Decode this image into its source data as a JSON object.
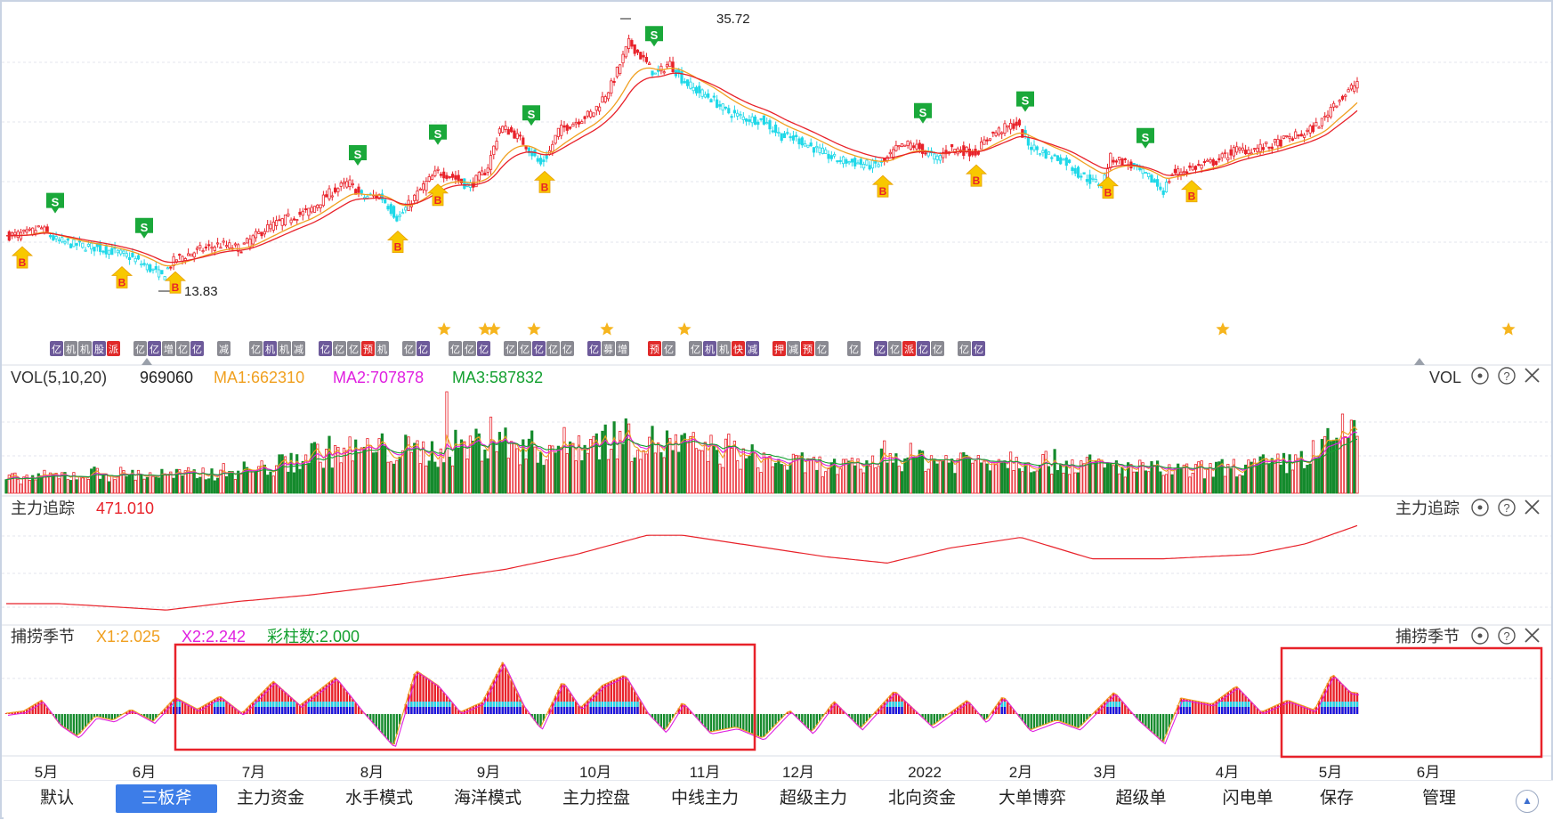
{
  "price_panel": {
    "high_label": "35.72",
    "low_label": "13.83"
  },
  "vol_panel": {
    "name": "VOL(5,10,20)",
    "value": "969060",
    "ma1": "MA1:662310",
    "ma2": "MA2:707878",
    "ma3": "MA3:587832",
    "right_name": "VOL"
  },
  "track_panel": {
    "name": "主力追踪",
    "value": "471.010",
    "right_name": "主力追踪"
  },
  "season_panel": {
    "name": "捕捞季节",
    "x1": "X1:2.025",
    "x2": "X2:2.242",
    "bars": "彩柱数:2.000",
    "right_name": "捕捞季节"
  },
  "x_axis": [
    "5月",
    "6月",
    "7月",
    "8月",
    "9月",
    "10月",
    "11月",
    "12月",
    "2022",
    "2月",
    "3月",
    "4月",
    "5月",
    "6月"
  ],
  "tabs": [
    "默认",
    "三板斧",
    "主力资金",
    "水手模式",
    "海洋模式",
    "主力控盘",
    "中线主力",
    "超级主力",
    "北向资金",
    "大单博弈",
    "超级单",
    "闪电单",
    "保存",
    "管理"
  ],
  "active_tab": "三板斧",
  "signals": {
    "buy": "B",
    "sell": "S",
    "event_tags": [
      "亿",
      "机",
      "机",
      "股",
      "派",
      "亿",
      "亿",
      "增",
      "亿",
      "亿",
      "减",
      "亿",
      "机",
      "机",
      "减",
      "亿",
      "亿",
      "亿",
      "预",
      "机",
      "亿",
      "亿",
      "亿",
      "亿",
      "亿",
      "亿",
      "亿",
      "亿",
      "亿",
      "亿",
      "亿",
      "募",
      "增",
      "预",
      "亿",
      "亿",
      "机",
      "机",
      "快",
      "减",
      "押",
      "减",
      "预",
      "亿",
      "亿",
      "亿",
      "亿",
      "派",
      "亿",
      "亿",
      "亿",
      "亿"
    ]
  },
  "colors": {
    "up": "#e8222a",
    "down_cyan": "#1fd8e8",
    "down_green": "#148a2c",
    "ma_red": "#e8222a",
    "ma_orange": "#f0a020",
    "ma_magenta": "#e020e0",
    "ma_green": "#14a030",
    "buy_arrow": "#f8c800",
    "sell_flag": "#1aa83a",
    "highlight_box": "#e8222a",
    "active_tab": "#3d7de8"
  },
  "chart_data": [
    {
      "type": "candlestick",
      "title": "",
      "x_labels": [
        "5月",
        "6月",
        "7月",
        "8月",
        "9月",
        "10月",
        "11月",
        "12月",
        "2022",
        "2月",
        "3月",
        "4月",
        "5月",
        "6月"
      ],
      "annotations": {
        "high": 35.72,
        "low": 13.83
      },
      "ylim": [
        12,
        38
      ],
      "close_path": [
        [
          0,
          17.6
        ],
        [
          25,
          17.8
        ],
        [
          38,
          18.4
        ],
        [
          55,
          17.2
        ],
        [
          75,
          16.8
        ],
        [
          100,
          16.5
        ],
        [
          118,
          16.2
        ],
        [
          140,
          15.6
        ],
        [
          160,
          14.6
        ],
        [
          175,
          13.83
        ],
        [
          190,
          15.4
        ],
        [
          215,
          16.2
        ],
        [
          240,
          16.8
        ],
        [
          262,
          16.4
        ],
        [
          290,
          18.2
        ],
        [
          315,
          19.2
        ],
        [
          340,
          19.9
        ],
        [
          365,
          21.7
        ],
        [
          385,
          22.6
        ],
        [
          400,
          21.2
        ],
        [
          420,
          21.4
        ],
        [
          440,
          19.2
        ],
        [
          455,
          20.8
        ],
        [
          470,
          22.4
        ],
        [
          485,
          23.6
        ],
        [
          500,
          23.2
        ],
        [
          520,
          22.2
        ],
        [
          540,
          23.8
        ],
        [
          555,
          27.8
        ],
        [
          570,
          27.2
        ],
        [
          585,
          26.0
        ],
        [
          600,
          24.2
        ],
        [
          610,
          25.4
        ],
        [
          620,
          27.4
        ],
        [
          640,
          28.3
        ],
        [
          660,
          29.2
        ],
        [
          680,
          31.7
        ],
        [
          700,
          35.72
        ],
        [
          715,
          34.2
        ],
        [
          730,
          32.6
        ],
        [
          745,
          33.8
        ],
        [
          760,
          32.2
        ],
        [
          775,
          31.2
        ],
        [
          790,
          30.6
        ],
        [
          810,
          29.2
        ],
        [
          830,
          28.6
        ],
        [
          850,
          28.4
        ],
        [
          870,
          27.0
        ],
        [
          890,
          26.6
        ],
        [
          910,
          25.7
        ],
        [
          930,
          24.8
        ],
        [
          950,
          24.5
        ],
        [
          970,
          24.2
        ],
        [
          985,
          24.4
        ],
        [
          1000,
          25.7
        ],
        [
          1015,
          26.2
        ],
        [
          1030,
          25.6
        ],
        [
          1045,
          24.8
        ],
        [
          1060,
          25.8
        ],
        [
          1080,
          25.5
        ],
        [
          1090,
          25.4
        ],
        [
          1105,
          27.0
        ],
        [
          1120,
          27.6
        ],
        [
          1135,
          28.1
        ],
        [
          1150,
          26.0
        ],
        [
          1170,
          25.2
        ],
        [
          1190,
          24.6
        ],
        [
          1205,
          23.4
        ],
        [
          1220,
          22.7
        ],
        [
          1232,
          22.4
        ],
        [
          1240,
          24.9
        ],
        [
          1255,
          24.6
        ],
        [
          1270,
          23.8
        ],
        [
          1285,
          23.0
        ],
        [
          1300,
          21.8
        ],
        [
          1310,
          23.4
        ],
        [
          1325,
          23.8
        ],
        [
          1340,
          24.1
        ],
        [
          1360,
          24.6
        ],
        [
          1380,
          25.6
        ],
        [
          1400,
          25.7
        ],
        [
          1420,
          26.0
        ],
        [
          1440,
          26.7
        ],
        [
          1460,
          27.2
        ],
        [
          1480,
          28.4
        ],
        [
          1490,
          29.9
        ],
        [
          1505,
          30.8
        ],
        [
          1520,
          32.2
        ],
        [
          1528,
          31.4
        ]
      ],
      "signals": {
        "buy_points": [
          18,
          130,
          190,
          440,
          485,
          605,
          985,
          1090,
          1238,
          1332
        ],
        "sell_points": [
          55,
          155,
          395,
          485,
          590,
          728,
          1030,
          1145,
          1280
        ]
      }
    },
    {
      "type": "bar",
      "name": "VOL(5,10,20)",
      "ylim": [
        0,
        1200000
      ],
      "last_value": 969060,
      "ma": {
        "MA1": 662310,
        "MA2": 707878,
        "MA3": 587832
      },
      "envelope": [
        [
          0,
          180000
        ],
        [
          100,
          250000
        ],
        [
          200,
          230000
        ],
        [
          300,
          330000
        ],
        [
          350,
          520000
        ],
        [
          420,
          560000
        ],
        [
          480,
          520000
        ],
        [
          540,
          660000
        ],
        [
          600,
          560000
        ],
        [
          680,
          700000
        ],
        [
          740,
          620000
        ],
        [
          800,
          540000
        ],
        [
          860,
          400000
        ],
        [
          950,
          320000
        ],
        [
          1000,
          470000
        ],
        [
          1060,
          420000
        ],
        [
          1120,
          450000
        ],
        [
          1200,
          380000
        ],
        [
          1260,
          320000
        ],
        [
          1320,
          280000
        ],
        [
          1380,
          330000
        ],
        [
          1440,
          380000
        ],
        [
          1480,
          560000
        ],
        [
          1528,
          969060
        ]
      ],
      "spikes": [
        [
          495,
          1200000
        ],
        [
          545,
          900000
        ],
        [
          700,
          820000
        ],
        [
          812,
          700000
        ],
        [
          988,
          620000
        ]
      ]
    },
    {
      "type": "line",
      "name": "主力追踪",
      "last_value": 471.01,
      "ylim": [
        0,
        1
      ],
      "path": [
        [
          0,
          0.2
        ],
        [
          60,
          0.2
        ],
        [
          180,
          0.14
        ],
        [
          260,
          0.22
        ],
        [
          340,
          0.28
        ],
        [
          440,
          0.38
        ],
        [
          560,
          0.52
        ],
        [
          640,
          0.66
        ],
        [
          720,
          0.84
        ],
        [
          760,
          0.84
        ],
        [
          840,
          0.74
        ],
        [
          920,
          0.64
        ],
        [
          990,
          0.58
        ],
        [
          1060,
          0.72
        ],
        [
          1140,
          0.82
        ],
        [
          1220,
          0.62
        ],
        [
          1300,
          0.62
        ],
        [
          1400,
          0.66
        ],
        [
          1460,
          0.76
        ],
        [
          1528,
          0.96
        ]
      ]
    },
    {
      "type": "area",
      "name": "捕捞季节",
      "series": [
        {
          "name": "X1",
          "last": 2.025
        },
        {
          "name": "X2",
          "last": 2.242
        }
      ],
      "colored_bars": 2.0,
      "ylim": [
        -1,
        1
      ],
      "path": [
        [
          0,
          0.02
        ],
        [
          20,
          0.08
        ],
        [
          40,
          0.35
        ],
        [
          60,
          -0.25
        ],
        [
          80,
          -0.55
        ],
        [
          100,
          -0.05
        ],
        [
          120,
          -0.15
        ],
        [
          140,
          0.12
        ],
        [
          165,
          -0.18
        ],
        [
          190,
          0.42
        ],
        [
          215,
          0.12
        ],
        [
          240,
          0.45
        ],
        [
          265,
          0.02
        ],
        [
          300,
          0.82
        ],
        [
          330,
          0.22
        ],
        [
          370,
          0.92
        ],
        [
          400,
          0.08
        ],
        [
          435,
          -0.8
        ],
        [
          460,
          1.1
        ],
        [
          485,
          0.72
        ],
        [
          510,
          0.05
        ],
        [
          535,
          0.3
        ],
        [
          558,
          1.3
        ],
        [
          580,
          0.25
        ],
        [
          600,
          -0.35
        ],
        [
          625,
          0.82
        ],
        [
          645,
          0.15
        ],
        [
          670,
          0.72
        ],
        [
          695,
          0.98
        ],
        [
          720,
          0.05
        ],
        [
          740,
          -0.42
        ],
        [
          760,
          0.3
        ],
        [
          790,
          -0.45
        ],
        [
          820,
          -0.32
        ],
        [
          850,
          -0.6
        ],
        [
          880,
          0.1
        ],
        [
          905,
          -0.45
        ],
        [
          930,
          0.32
        ],
        [
          960,
          -0.35
        ],
        [
          998,
          0.58
        ],
        [
          1040,
          -0.3
        ],
        [
          1080,
          0.35
        ],
        [
          1100,
          -0.18
        ],
        [
          1120,
          0.45
        ],
        [
          1150,
          -0.4
        ],
        [
          1180,
          -0.15
        ],
        [
          1205,
          -0.35
        ],
        [
          1245,
          0.55
        ],
        [
          1270,
          -0.1
        ],
        [
          1300,
          -0.7
        ],
        [
          1320,
          0.4
        ],
        [
          1355,
          0.25
        ],
        [
          1382,
          0.7
        ],
        [
          1410,
          0.05
        ],
        [
          1440,
          0.35
        ],
        [
          1470,
          0.1
        ],
        [
          1490,
          1.0
        ],
        [
          1510,
          0.55
        ],
        [
          1528,
          0.5
        ]
      ]
    }
  ]
}
